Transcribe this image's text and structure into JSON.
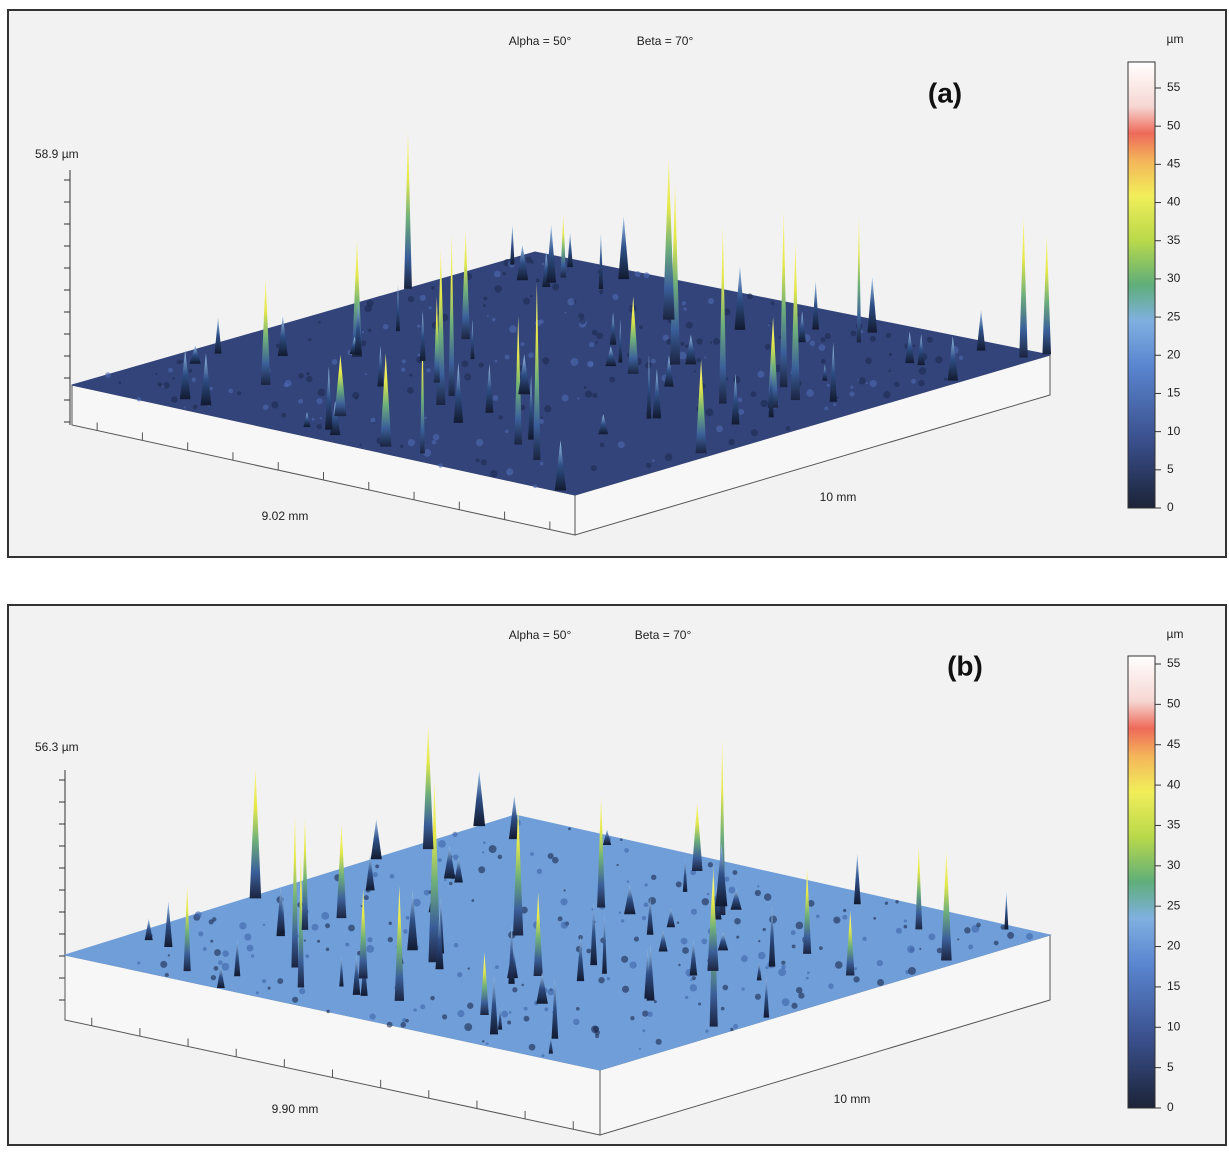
{
  "panels": [
    {
      "alpha": "Alpha = 50°",
      "beta": "Beta = 70°",
      "label": "(a)",
      "unit": "µm",
      "height": "58.9 µm",
      "x_extent": "9.02 mm",
      "y_extent": "10 mm",
      "colorbar_ticks": [
        55,
        50,
        45,
        40,
        35,
        30,
        25,
        20,
        15,
        10,
        5,
        0
      ]
    },
    {
      "alpha": "Alpha = 50°",
      "beta": "Beta = 70°",
      "label": "(b)",
      "unit": "µm",
      "height": "56.3 µm",
      "x_extent": "9.90 mm",
      "y_extent": "10 mm",
      "colorbar_ticks": [
        55,
        50,
        45,
        40,
        35,
        30,
        25,
        20,
        15,
        10,
        5,
        0
      ]
    }
  ]
}
